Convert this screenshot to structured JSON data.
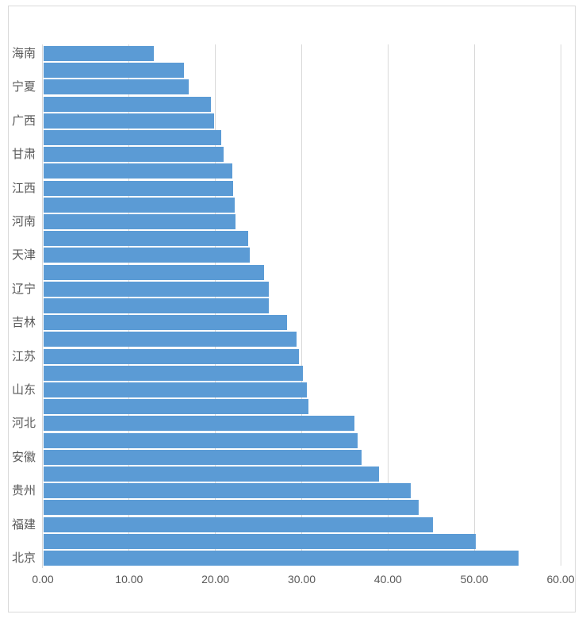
{
  "chart_data": {
    "type": "bar",
    "orientation": "horizontal",
    "title": "",
    "xlabel": "",
    "ylabel": "",
    "categories": [
      "海南",
      "",
      "宁夏",
      "",
      "广西",
      "",
      "甘肃",
      "",
      "江西",
      "",
      "河南",
      "",
      "天津",
      "",
      "辽宁",
      "",
      "吉林",
      "",
      "江苏",
      "",
      "山东",
      "",
      "河北",
      "",
      "安徽",
      "",
      "贵州",
      "",
      "福建",
      "",
      "北京"
    ],
    "values": [
      12.8,
      16.3,
      16.8,
      19.4,
      19.8,
      20.6,
      20.9,
      21.9,
      22.0,
      22.1,
      22.2,
      23.7,
      23.9,
      25.5,
      26.1,
      26.1,
      28.2,
      29.3,
      29.6,
      30.0,
      30.5,
      30.7,
      36.0,
      36.4,
      36.8,
      38.9,
      42.5,
      43.5,
      45.1,
      50.1,
      55.0
    ],
    "xlim": [
      0,
      60
    ],
    "x_ticks": [
      "0.00",
      "10.00",
      "20.00",
      "30.00",
      "40.00",
      "50.00",
      "60.00"
    ],
    "x_tick_values": [
      0,
      10,
      20,
      30,
      40,
      50,
      60
    ],
    "grid": "vertical-only",
    "legend": "none",
    "bar_color": "#5b9bd5",
    "gridline_color": "#d9d9d9",
    "axis_text_color": "#595959",
    "chart_border_color": "#d9d9d9",
    "background_color": "#ffffff"
  }
}
